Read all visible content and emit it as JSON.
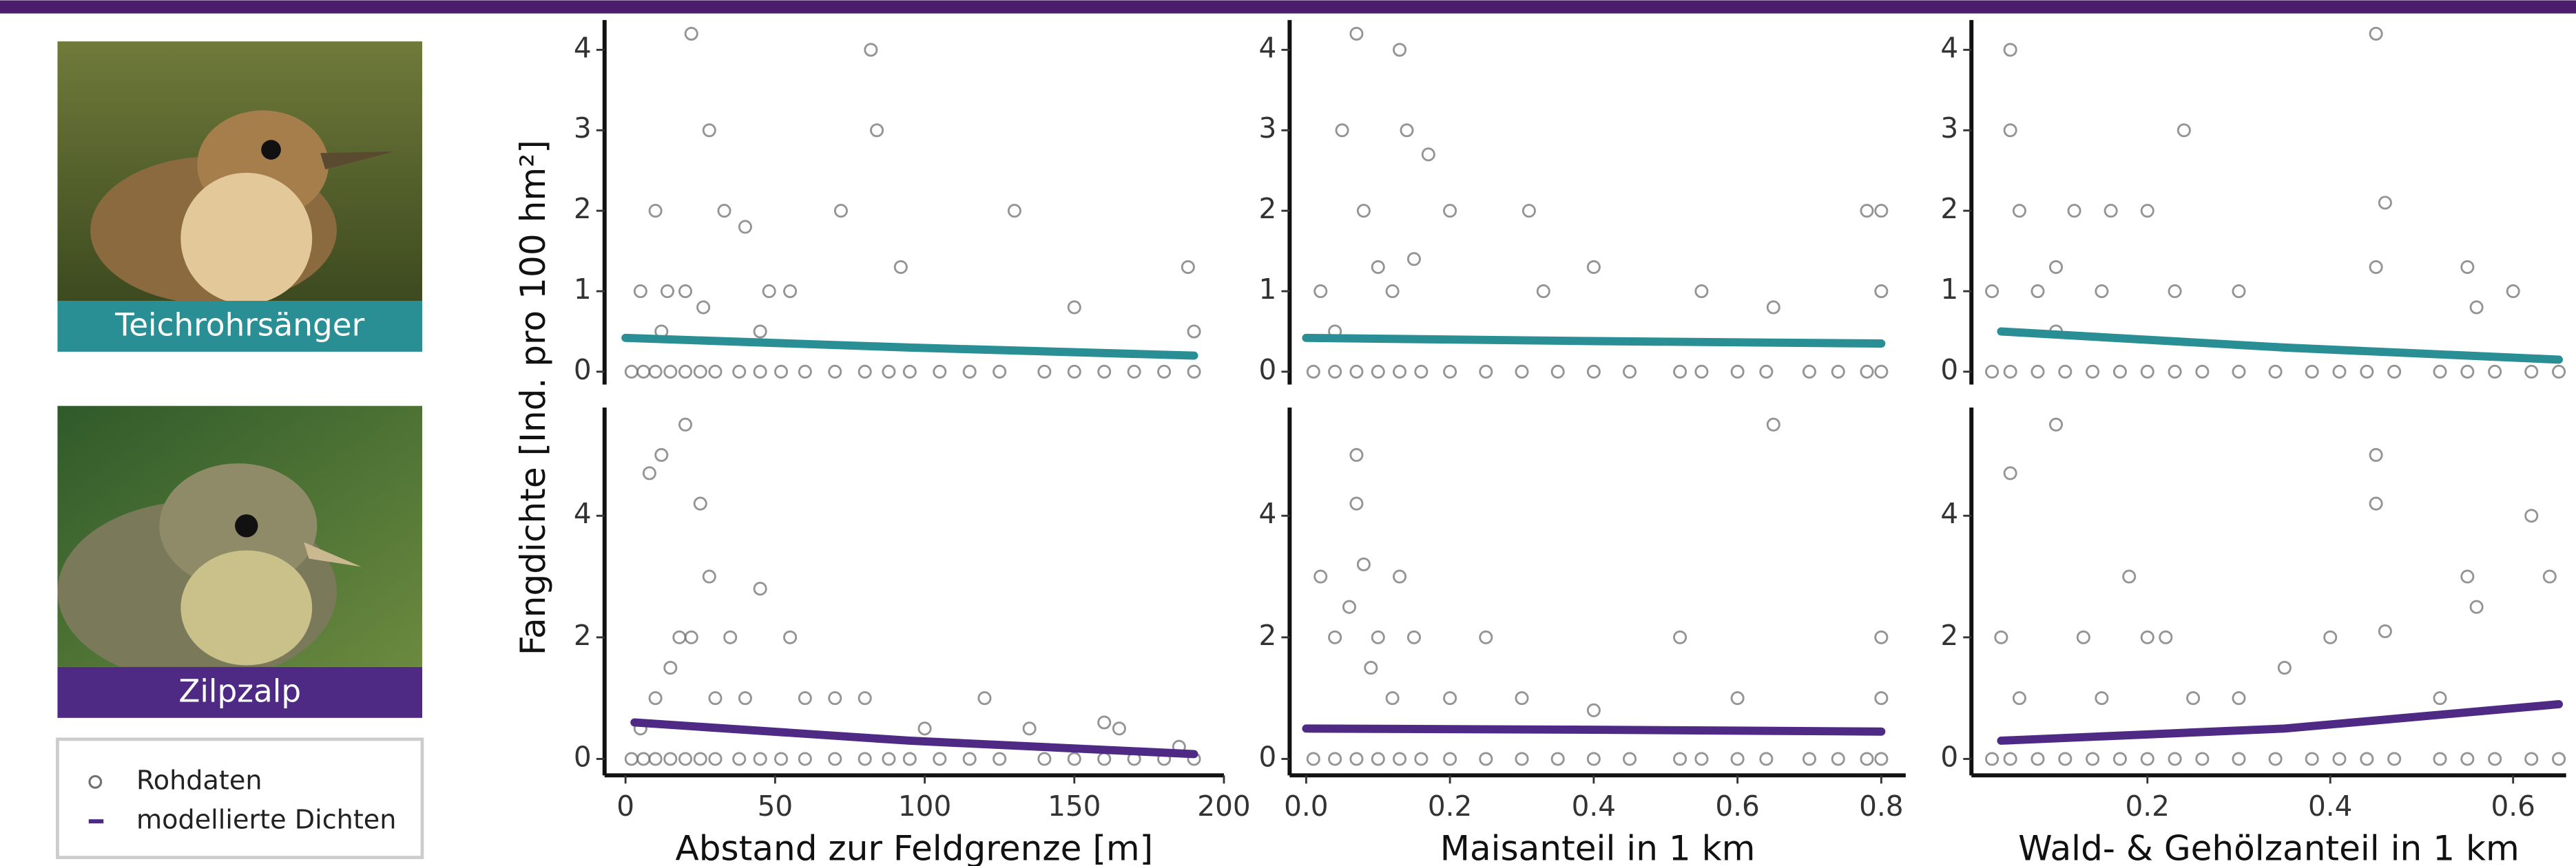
{
  "y_label": "Fangdichte [Ind. pro 100 hm²]",
  "species": [
    {
      "label": "Teichrohrsänger",
      "color": "#2a8f95"
    },
    {
      "label": "Zilpzalp",
      "color": "#4e2a84"
    }
  ],
  "legend": {
    "entries": [
      "Rohdaten",
      "modellierte Dichten"
    ],
    "point_color": "#707070",
    "line_color": "#4e2a84"
  },
  "chart_data": [
    {
      "type": "scatter",
      "xlim": [
        -7,
        200
      ],
      "ylim": [
        -0.16,
        4.37
      ],
      "yticks": [
        0,
        1,
        2,
        3,
        4
      ],
      "series": [
        {
          "color": "#707070",
          "x": [
            2,
            6,
            10,
            15,
            20,
            25,
            30,
            38,
            45,
            52,
            60,
            70,
            80,
            88,
            95,
            105,
            115,
            125,
            140,
            150,
            160,
            170,
            180,
            190,
            5,
            10,
            14,
            20,
            22,
            28,
            33,
            40,
            48,
            55,
            72,
            82,
            84,
            92,
            130,
            150,
            188,
            190,
            12,
            26,
            45
          ],
          "values": [
            0,
            0,
            0,
            0,
            0,
            0,
            0,
            0,
            0,
            0,
            0,
            0,
            0,
            0,
            0,
            0,
            0,
            0,
            0,
            0,
            0,
            0,
            0,
            0,
            1,
            2,
            1,
            1,
            4.2,
            3,
            2,
            1.8,
            1,
            1,
            2,
            4,
            3,
            1.3,
            2,
            0.8,
            1.3,
            0.5,
            0.5,
            0.8,
            0.5
          ]
        },
        {
          "type": "line",
          "color": "#2a8f95",
          "x": [
            0,
            95,
            190
          ],
          "values": [
            0.42,
            0.3,
            0.2
          ]
        }
      ]
    },
    {
      "type": "scatter",
      "xlim": [
        -0.023,
        0.834
      ],
      "ylim": [
        -0.16,
        4.37
      ],
      "yticks": [
        0,
        1,
        2,
        3,
        4
      ],
      "series": [
        {
          "color": "#707070",
          "x": [
            0.01,
            0.04,
            0.07,
            0.1,
            0.13,
            0.16,
            0.2,
            0.25,
            0.3,
            0.35,
            0.4,
            0.45,
            0.52,
            0.55,
            0.6,
            0.64,
            0.7,
            0.74,
            0.78,
            0.8,
            0.02,
            0.05,
            0.07,
            0.08,
            0.1,
            0.13,
            0.14,
            0.15,
            0.17,
            0.2,
            0.31,
            0.33,
            0.4,
            0.55,
            0.65,
            0.78,
            0.8,
            0.04,
            0.12,
            0.8
          ],
          "values": [
            0,
            0,
            0,
            0,
            0,
            0,
            0,
            0,
            0,
            0,
            0,
            0,
            0,
            0,
            0,
            0,
            0,
            0,
            0,
            0,
            1,
            3,
            4.2,
            2,
            1.3,
            4,
            3,
            1.4,
            2.7,
            2,
            2,
            1,
            1.3,
            1,
            0.8,
            2,
            2,
            0.5,
            1,
            1
          ]
        },
        {
          "type": "line",
          "color": "#2a8f95",
          "x": [
            0,
            0.4,
            0.8
          ],
          "values": [
            0.42,
            0.38,
            0.35
          ]
        }
      ]
    },
    {
      "type": "scatter",
      "xlim": [
        0.0075,
        0.658
      ],
      "ylim": [
        -0.16,
        4.37
      ],
      "yticks": [
        0,
        1,
        2,
        3,
        4
      ],
      "series": [
        {
          "color": "#707070",
          "x": [
            0.03,
            0.05,
            0.08,
            0.11,
            0.14,
            0.17,
            0.2,
            0.23,
            0.26,
            0.3,
            0.34,
            0.38,
            0.41,
            0.44,
            0.47,
            0.52,
            0.55,
            0.58,
            0.62,
            0.65,
            0.03,
            0.05,
            0.05,
            0.06,
            0.08,
            0.1,
            0.12,
            0.15,
            0.16,
            0.2,
            0.23,
            0.24,
            0.3,
            0.45,
            0.45,
            0.46,
            0.55,
            0.56,
            0.6,
            0.1
          ],
          "values": [
            0,
            0,
            0,
            0,
            0,
            0,
            0,
            0,
            0,
            0,
            0,
            0,
            0,
            0,
            0,
            0,
            0,
            0,
            0,
            0,
            1,
            4,
            3,
            2,
            1,
            1.3,
            2,
            1,
            2,
            2,
            1,
            3,
            1,
            4.2,
            1.3,
            2.1,
            1.3,
            0.8,
            1,
            0.5
          ]
        },
        {
          "type": "line",
          "color": "#2a8f95",
          "x": [
            0.04,
            0.35,
            0.65
          ],
          "values": [
            0.5,
            0.3,
            0.15
          ]
        }
      ]
    },
    {
      "type": "scatter",
      "x_label": "Abstand zur Feldgrenze [m]",
      "xlim": [
        -7,
        200
      ],
      "ylim": [
        -0.27,
        5.78
      ],
      "xticks": [
        0,
        50,
        100,
        150,
        200
      ],
      "yticks": [
        0,
        2,
        4
      ],
      "series": [
        {
          "color": "#707070",
          "x": [
            2,
            6,
            10,
            15,
            20,
            25,
            30,
            38,
            45,
            52,
            60,
            70,
            80,
            88,
            95,
            105,
            115,
            125,
            140,
            150,
            160,
            170,
            180,
            190,
            5,
            8,
            10,
            12,
            15,
            18,
            20,
            22,
            25,
            28,
            30,
            35,
            40,
            45,
            55,
            60,
            70,
            80,
            100,
            120,
            135,
            160,
            165,
            185
          ],
          "values": [
            0,
            0,
            0,
            0,
            0,
            0,
            0,
            0,
            0,
            0,
            0,
            0,
            0,
            0,
            0,
            0,
            0,
            0,
            0,
            0,
            0,
            0,
            0,
            0,
            0.5,
            4.7,
            1,
            5,
            1.5,
            2,
            5.5,
            2,
            4.2,
            3,
            1,
            2,
            1,
            2.8,
            2,
            1,
            1,
            1,
            0.5,
            1,
            0.5,
            0.6,
            0.5,
            0.2
          ]
        },
        {
          "type": "line",
          "color": "#4e2a84",
          "x": [
            3,
            95,
            190
          ],
          "values": [
            0.6,
            0.3,
            0.08
          ]
        }
      ]
    },
    {
      "type": "scatter",
      "x_label": "Maisanteil in 1 km",
      "xlim": [
        -0.023,
        0.834
      ],
      "ylim": [
        -0.27,
        5.78
      ],
      "xticks": [
        {
          "value": 0,
          "label": "0.0"
        },
        0.2,
        0.4,
        0.6,
        0.8
      ],
      "yticks": [
        0,
        2,
        4
      ],
      "series": [
        {
          "color": "#707070",
          "x": [
            0.01,
            0.04,
            0.07,
            0.1,
            0.13,
            0.16,
            0.2,
            0.25,
            0.3,
            0.35,
            0.4,
            0.45,
            0.52,
            0.55,
            0.6,
            0.64,
            0.7,
            0.74,
            0.78,
            0.8,
            0.02,
            0.04,
            0.06,
            0.07,
            0.07,
            0.08,
            0.09,
            0.1,
            0.12,
            0.13,
            0.15,
            0.2,
            0.25,
            0.3,
            0.4,
            0.52,
            0.6,
            0.65,
            0.8,
            0.8
          ],
          "values": [
            0,
            0,
            0,
            0,
            0,
            0,
            0,
            0,
            0,
            0,
            0,
            0,
            0,
            0,
            0,
            0,
            0,
            0,
            0,
            0,
            3,
            2,
            2.5,
            5,
            4.2,
            3.2,
            1.5,
            2,
            1,
            3,
            2,
            1,
            2,
            1,
            0.8,
            2,
            1,
            5.5,
            2,
            1
          ]
        },
        {
          "type": "line",
          "color": "#4e2a84",
          "x": [
            0,
            0.4,
            0.8
          ],
          "values": [
            0.5,
            0.48,
            0.45
          ]
        }
      ]
    },
    {
      "type": "scatter",
      "x_label": "Wald- & Gehölzanteil in 1 km",
      "xlim": [
        0.0075,
        0.658
      ],
      "ylim": [
        -0.27,
        5.78
      ],
      "xticks": [
        0.2,
        0.4,
        0.6
      ],
      "yticks": [
        0,
        2,
        4
      ],
      "series": [
        {
          "color": "#707070",
          "x": [
            0.03,
            0.05,
            0.08,
            0.11,
            0.14,
            0.17,
            0.2,
            0.23,
            0.26,
            0.3,
            0.34,
            0.38,
            0.41,
            0.44,
            0.47,
            0.52,
            0.55,
            0.58,
            0.62,
            0.65,
            0.04,
            0.05,
            0.06,
            0.1,
            0.13,
            0.15,
            0.18,
            0.2,
            0.22,
            0.25,
            0.3,
            0.35,
            0.4,
            0.45,
            0.45,
            0.46,
            0.52,
            0.55,
            0.56,
            0.62,
            0.64
          ],
          "values": [
            0,
            0,
            0,
            0,
            0,
            0,
            0,
            0,
            0,
            0,
            0,
            0,
            0,
            0,
            0,
            0,
            0,
            0,
            0,
            0,
            2,
            4.7,
            1,
            5.5,
            2,
            1,
            3,
            2,
            2,
            1,
            1,
            1.5,
            2,
            5,
            4.2,
            2.1,
            1,
            3,
            2.5,
            4,
            3
          ]
        },
        {
          "type": "line",
          "color": "#4e2a84",
          "x": [
            0.04,
            0.35,
            0.65
          ],
          "values": [
            0.3,
            0.5,
            0.9
          ]
        }
      ]
    }
  ]
}
